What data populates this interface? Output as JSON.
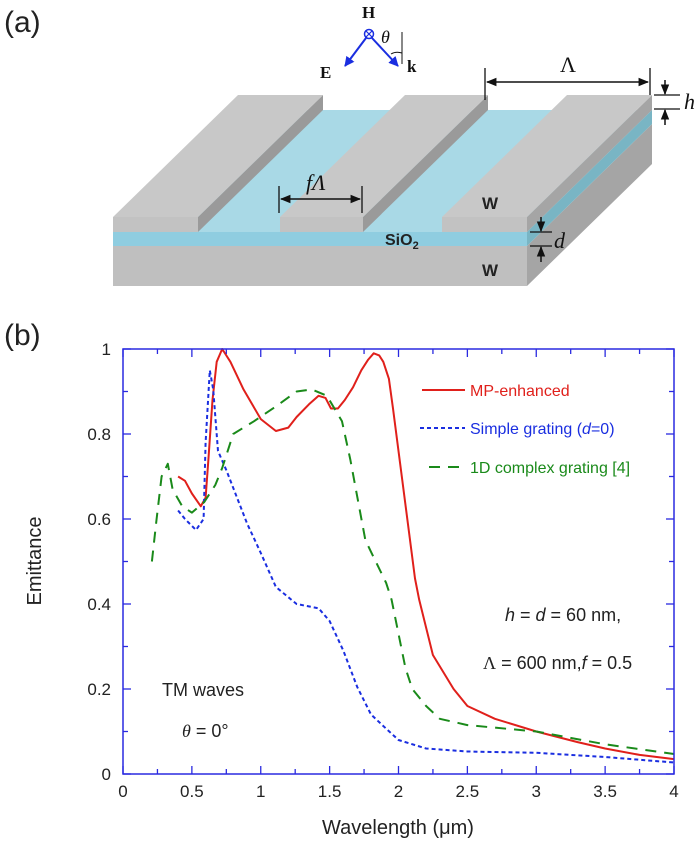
{
  "panels": {
    "a_label": "(a)",
    "b_label": "(b)"
  },
  "diagram": {
    "H": "H",
    "E": "E",
    "k": "k",
    "theta": "θ",
    "period": "Λ",
    "height": "h",
    "fill_width": "fΛ",
    "metal_top": "W",
    "metal_bottom": "W",
    "dielectric": "SiO",
    "dielectric_sub": "2",
    "thickness": "d",
    "colors": {
      "metal": "#c6c6c6",
      "dielectric": "#a9d9e6",
      "field_arrows": "#1a2ee0"
    }
  },
  "chart_data": {
    "type": "line",
    "xlabel": "Wavelength (μm)",
    "ylabel": "Emittance",
    "xlim": [
      0,
      4
    ],
    "ylim": [
      0,
      1
    ],
    "x_ticks": [
      "0",
      "0.5",
      "1",
      "1.5",
      "2",
      "2.5",
      "3",
      "3.5",
      "4"
    ],
    "y_ticks": [
      "0",
      "0.2",
      "0.4",
      "0.6",
      "0.8",
      "1"
    ],
    "grid": false,
    "legend": "top-right",
    "axis_color": "#2a2ae0",
    "series": [
      {
        "name": "MP-enhanced",
        "color": "#e0201b",
        "style": "solid",
        "x": [
          0.4,
          0.45,
          0.5,
          0.565,
          0.6,
          0.62,
          0.65,
          0.68,
          0.72,
          0.78,
          0.875,
          1.0,
          1.11,
          1.2,
          1.26,
          1.35,
          1.42,
          1.47,
          1.51,
          1.56,
          1.61,
          1.67,
          1.73,
          1.78,
          1.82,
          1.86,
          1.89,
          1.93,
          1.96,
          2.0,
          2.04,
          2.12,
          2.15,
          2.25,
          2.4,
          2.5,
          2.7,
          3.0,
          3.3,
          3.5,
          3.75,
          4.0
        ],
        "y": [
          0.7,
          0.69,
          0.66,
          0.63,
          0.65,
          0.74,
          0.88,
          0.97,
          1.0,
          0.97,
          0.905,
          0.835,
          0.807,
          0.815,
          0.84,
          0.87,
          0.89,
          0.885,
          0.86,
          0.86,
          0.88,
          0.91,
          0.95,
          0.975,
          0.99,
          0.985,
          0.97,
          0.93,
          0.86,
          0.76,
          0.66,
          0.46,
          0.41,
          0.28,
          0.2,
          0.16,
          0.13,
          0.1,
          0.075,
          0.06,
          0.045,
          0.035
        ]
      },
      {
        "name": "Simple grating (d=0)",
        "color": "#1a2ee0",
        "style": "dotted",
        "x": [
          0.4,
          0.45,
          0.53,
          0.585,
          0.6,
          0.63,
          0.655,
          0.69,
          0.75,
          0.9,
          1.0,
          1.11,
          1.26,
          1.42,
          1.5,
          1.6,
          1.7,
          1.8,
          1.9,
          2.0,
          2.2,
          2.5,
          3.0,
          3.5,
          4.0
        ],
        "y": [
          0.62,
          0.6,
          0.574,
          0.6,
          0.78,
          0.95,
          0.905,
          0.76,
          0.715,
          0.59,
          0.52,
          0.44,
          0.4,
          0.39,
          0.36,
          0.29,
          0.205,
          0.14,
          0.11,
          0.08,
          0.06,
          0.053,
          0.05,
          0.04,
          0.027
        ]
      },
      {
        "name": "1D complex grating [4]",
        "color": "#1a8a1a",
        "style": "dashed",
        "x": [
          0.21,
          0.24,
          0.28,
          0.325,
          0.36,
          0.43,
          0.5,
          0.59,
          0.67,
          0.72,
          0.8,
          0.95,
          1.11,
          1.26,
          1.37,
          1.48,
          1.59,
          1.65,
          1.76,
          1.91,
          1.95,
          2.05,
          2.1,
          2.2,
          2.3,
          2.5,
          3.0,
          3.5,
          4.0
        ],
        "y": [
          0.5,
          0.59,
          0.7,
          0.73,
          0.67,
          0.63,
          0.615,
          0.64,
          0.68,
          0.72,
          0.8,
          0.83,
          0.865,
          0.9,
          0.905,
          0.89,
          0.83,
          0.74,
          0.55,
          0.45,
          0.41,
          0.25,
          0.2,
          0.16,
          0.13,
          0.115,
          0.1,
          0.07,
          0.047
        ]
      }
    ],
    "annotations": {
      "params_line1": {
        "h": "h",
        "eq1": " = ",
        "d": "d",
        "rest": " = 60 nm,"
      },
      "params_line2": {
        "Lambda": "Λ",
        "mid": " = 600 nm,",
        "f": "f",
        "rest": " = 0.5"
      },
      "polarization": "TM waves",
      "angle": {
        "theta": "θ",
        "rest": " = 0°"
      }
    }
  }
}
